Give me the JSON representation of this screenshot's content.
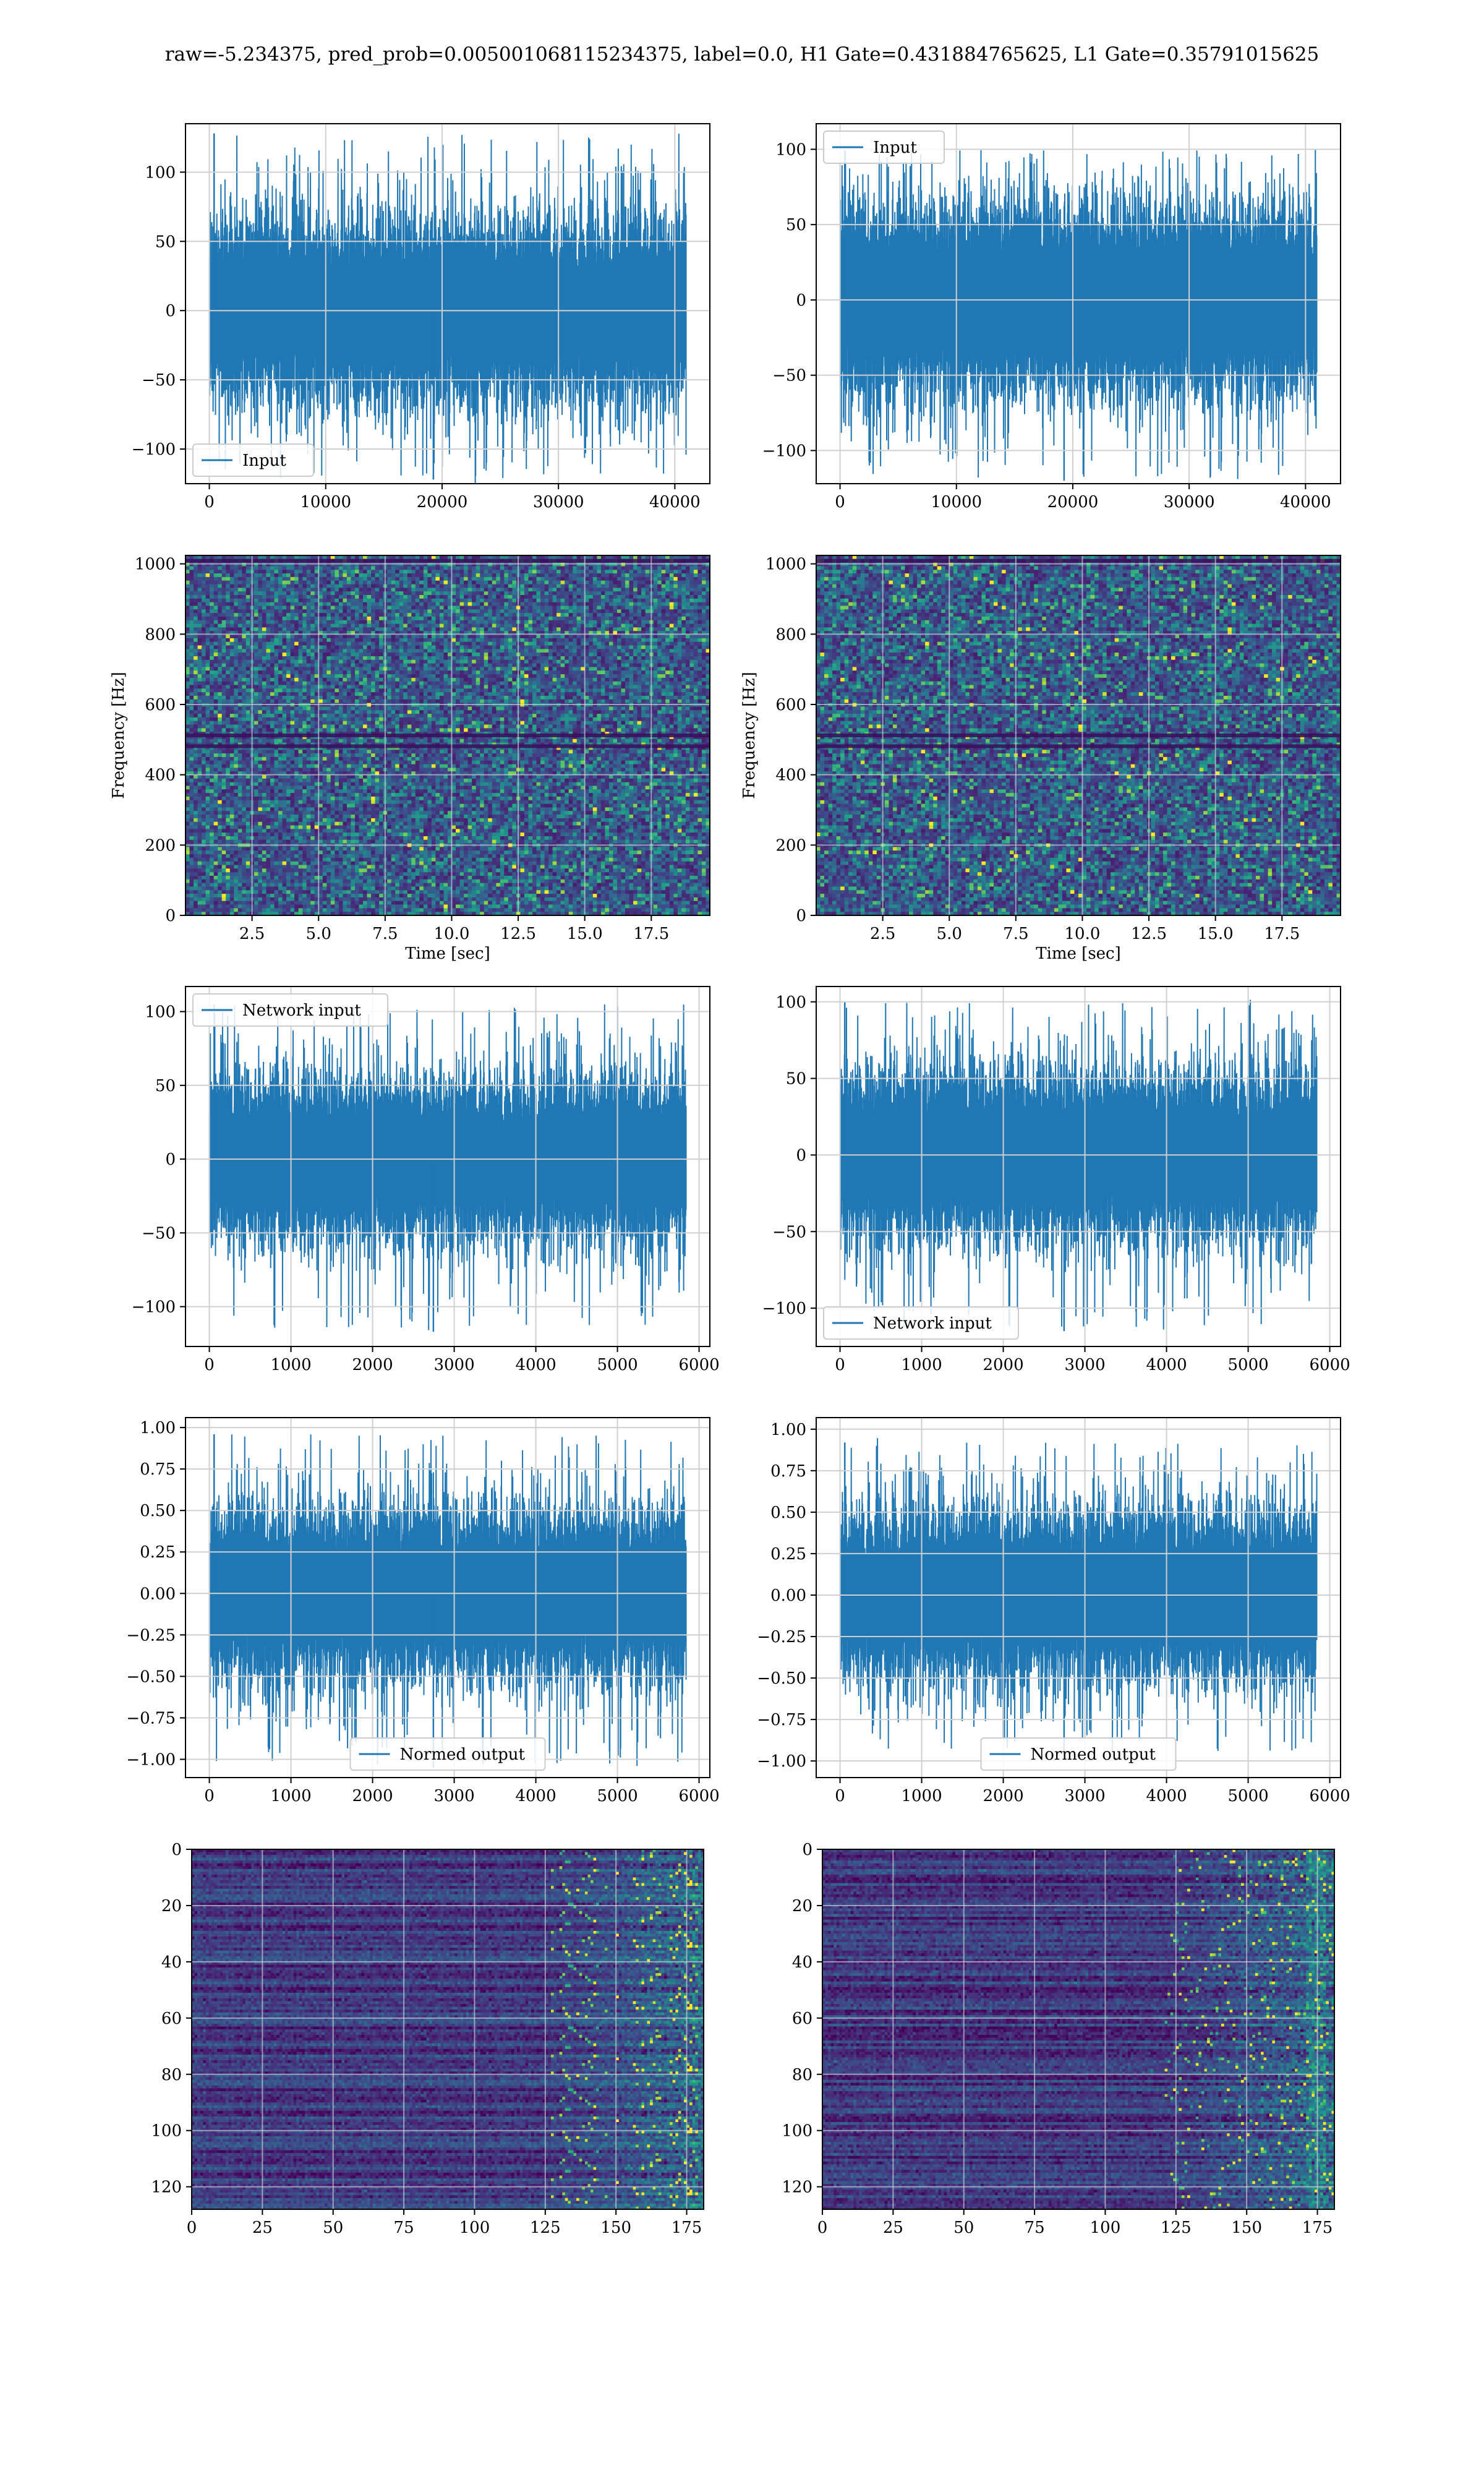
{
  "figure": {
    "suptitle": "raw=-5.234375, pred_prob=0.005001068115234375, label=0.0, H1 Gate=0.431884765625, L1 Gate=0.35791015625"
  },
  "colors": {
    "series": "#1f77b4",
    "grid": "#d0d0d0",
    "viridis_dark": "#440154",
    "viridis_mid": "#21918c",
    "viridis_bright": "#fde725"
  },
  "chart_data": [
    {
      "id": "h1-input",
      "type": "line",
      "title": "",
      "xlabel": "",
      "ylabel": "",
      "legend": {
        "entries": [
          "Input"
        ],
        "placement": "lower-left"
      },
      "x_range": [
        0,
        40960
      ],
      "xlim": [
        -2048,
        43008
      ],
      "ylim": [
        -125,
        135
      ],
      "xticks": [
        0,
        10000,
        20000,
        30000,
        40000
      ],
      "yticks": [
        -100,
        -50,
        0,
        50,
        100
      ],
      "series": [
        {
          "name": "Input",
          "envelope": {
            "typical_abs": 55,
            "max": 128,
            "min": -122
          }
        }
      ],
      "grid": true
    },
    {
      "id": "l1-input",
      "type": "line",
      "title": "",
      "xlabel": "",
      "ylabel": "",
      "legend": {
        "entries": [
          "Input"
        ],
        "placement": "upper-left"
      },
      "x_range": [
        0,
        40960
      ],
      "xlim": [
        -2048,
        43008
      ],
      "ylim": [
        -122,
        117
      ],
      "xticks": [
        0,
        10000,
        20000,
        30000,
        40000
      ],
      "yticks": [
        -100,
        -50,
        0,
        50,
        100
      ],
      "series": [
        {
          "name": "Input",
          "envelope": {
            "typical_abs": 52,
            "max": 100,
            "min": -120
          }
        }
      ],
      "grid": true
    },
    {
      "id": "h1-spectrogram",
      "type": "heatmap",
      "title": "",
      "xlabel": "Time [sec]",
      "ylabel": "Frequency [Hz]",
      "xlim": [
        0,
        19.7
      ],
      "ylim": [
        0,
        1024
      ],
      "xticks": [
        2.5,
        5.0,
        7.5,
        10.0,
        12.5,
        15.0,
        17.5
      ],
      "yticks": [
        0,
        200,
        400,
        600,
        800,
        1000
      ],
      "colormap": "viridis",
      "grid": true
    },
    {
      "id": "l1-spectrogram",
      "type": "heatmap",
      "title": "",
      "xlabel": "Time [sec]",
      "ylabel": "Frequency [Hz]",
      "xlim": [
        0,
        19.7
      ],
      "ylim": [
        0,
        1024
      ],
      "xticks": [
        2.5,
        5.0,
        7.5,
        10.0,
        12.5,
        15.0,
        17.5
      ],
      "yticks": [
        0,
        200,
        400,
        600,
        800,
        1000
      ],
      "colormap": "viridis",
      "grid": true
    },
    {
      "id": "h1-network-input",
      "type": "line",
      "title": "",
      "xlabel": "",
      "ylabel": "",
      "legend": {
        "entries": [
          "Network input"
        ],
        "placement": "upper-left"
      },
      "x_range": [
        0,
        5840
      ],
      "xlim": [
        -292,
        6132
      ],
      "ylim": [
        -127,
        117
      ],
      "xticks": [
        0,
        1000,
        2000,
        3000,
        4000,
        5000,
        6000
      ],
      "yticks": [
        -100,
        -50,
        0,
        50,
        100
      ],
      "series": [
        {
          "name": "Network input",
          "envelope": {
            "typical_abs": 45,
            "max": 105,
            "min": -117
          }
        }
      ],
      "grid": true
    },
    {
      "id": "l1-network-input",
      "type": "line",
      "title": "",
      "xlabel": "",
      "ylabel": "",
      "legend": {
        "entries": [
          "Network input"
        ],
        "placement": "lower-left"
      },
      "x_range": [
        0,
        5840
      ],
      "xlim": [
        -292,
        6132
      ],
      "ylim": [
        -125,
        110
      ],
      "xticks": [
        0,
        1000,
        2000,
        3000,
        4000,
        5000,
        6000
      ],
      "yticks": [
        -100,
        -50,
        0,
        50,
        100
      ],
      "series": [
        {
          "name": "Network input",
          "envelope": {
            "typical_abs": 45,
            "max": 100,
            "min": -115
          }
        }
      ],
      "grid": true
    },
    {
      "id": "h1-normed-output",
      "type": "line",
      "title": "",
      "xlabel": "",
      "ylabel": "",
      "legend": {
        "entries": [
          "Normed output"
        ],
        "placement": "lower-center"
      },
      "x_range": [
        0,
        5840
      ],
      "xlim": [
        -292,
        6132
      ],
      "ylim": [
        -1.11,
        1.06
      ],
      "xticks": [
        0,
        1000,
        2000,
        3000,
        4000,
        5000,
        6000
      ],
      "yticks": [
        -1.0,
        -0.75,
        -0.5,
        -0.25,
        0.0,
        0.25,
        0.5,
        0.75,
        1.0
      ],
      "series": [
        {
          "name": "Normed output",
          "envelope": {
            "typical_abs": 0.42,
            "max": 0.96,
            "min": -1.05
          }
        }
      ],
      "grid": true
    },
    {
      "id": "l1-normed-output",
      "type": "line",
      "title": "",
      "xlabel": "",
      "ylabel": "",
      "legend": {
        "entries": [
          "Normed output"
        ],
        "placement": "lower-center"
      },
      "x_range": [
        0,
        5840
      ],
      "xlim": [
        -292,
        6132
      ],
      "ylim": [
        -1.1,
        1.07
      ],
      "xticks": [
        0,
        1000,
        2000,
        3000,
        4000,
        5000,
        6000
      ],
      "yticks": [
        -1.0,
        -0.75,
        -0.5,
        -0.25,
        0.0,
        0.25,
        0.5,
        0.75,
        1.0
      ],
      "series": [
        {
          "name": "Normed output",
          "envelope": {
            "typical_abs": 0.42,
            "max": 0.92,
            "min": -0.96
          }
        }
      ],
      "grid": true
    },
    {
      "id": "h1-feature-map",
      "type": "heatmap",
      "title": "",
      "xlabel": "",
      "ylabel": "",
      "xlim": [
        0,
        181
      ],
      "ylim": [
        128,
        0
      ],
      "y_inverted": true,
      "xticks": [
        0,
        25,
        50,
        75,
        100,
        125,
        150,
        175
      ],
      "yticks": [
        0,
        20,
        40,
        60,
        80,
        100,
        120
      ],
      "colormap": "viridis",
      "grid": true,
      "note_visual": "activations brighten strongly for x > 125"
    },
    {
      "id": "l1-feature-map",
      "type": "heatmap",
      "title": "",
      "xlabel": "",
      "ylabel": "",
      "xlim": [
        0,
        181
      ],
      "ylim": [
        128,
        0
      ],
      "y_inverted": true,
      "xticks": [
        0,
        25,
        50,
        75,
        100,
        125,
        150,
        175
      ],
      "yticks": [
        0,
        20,
        40,
        60,
        80,
        100,
        120
      ],
      "colormap": "viridis",
      "grid": true,
      "note_visual": "activations brighten for x > 120, bright band near x = 175"
    }
  ]
}
